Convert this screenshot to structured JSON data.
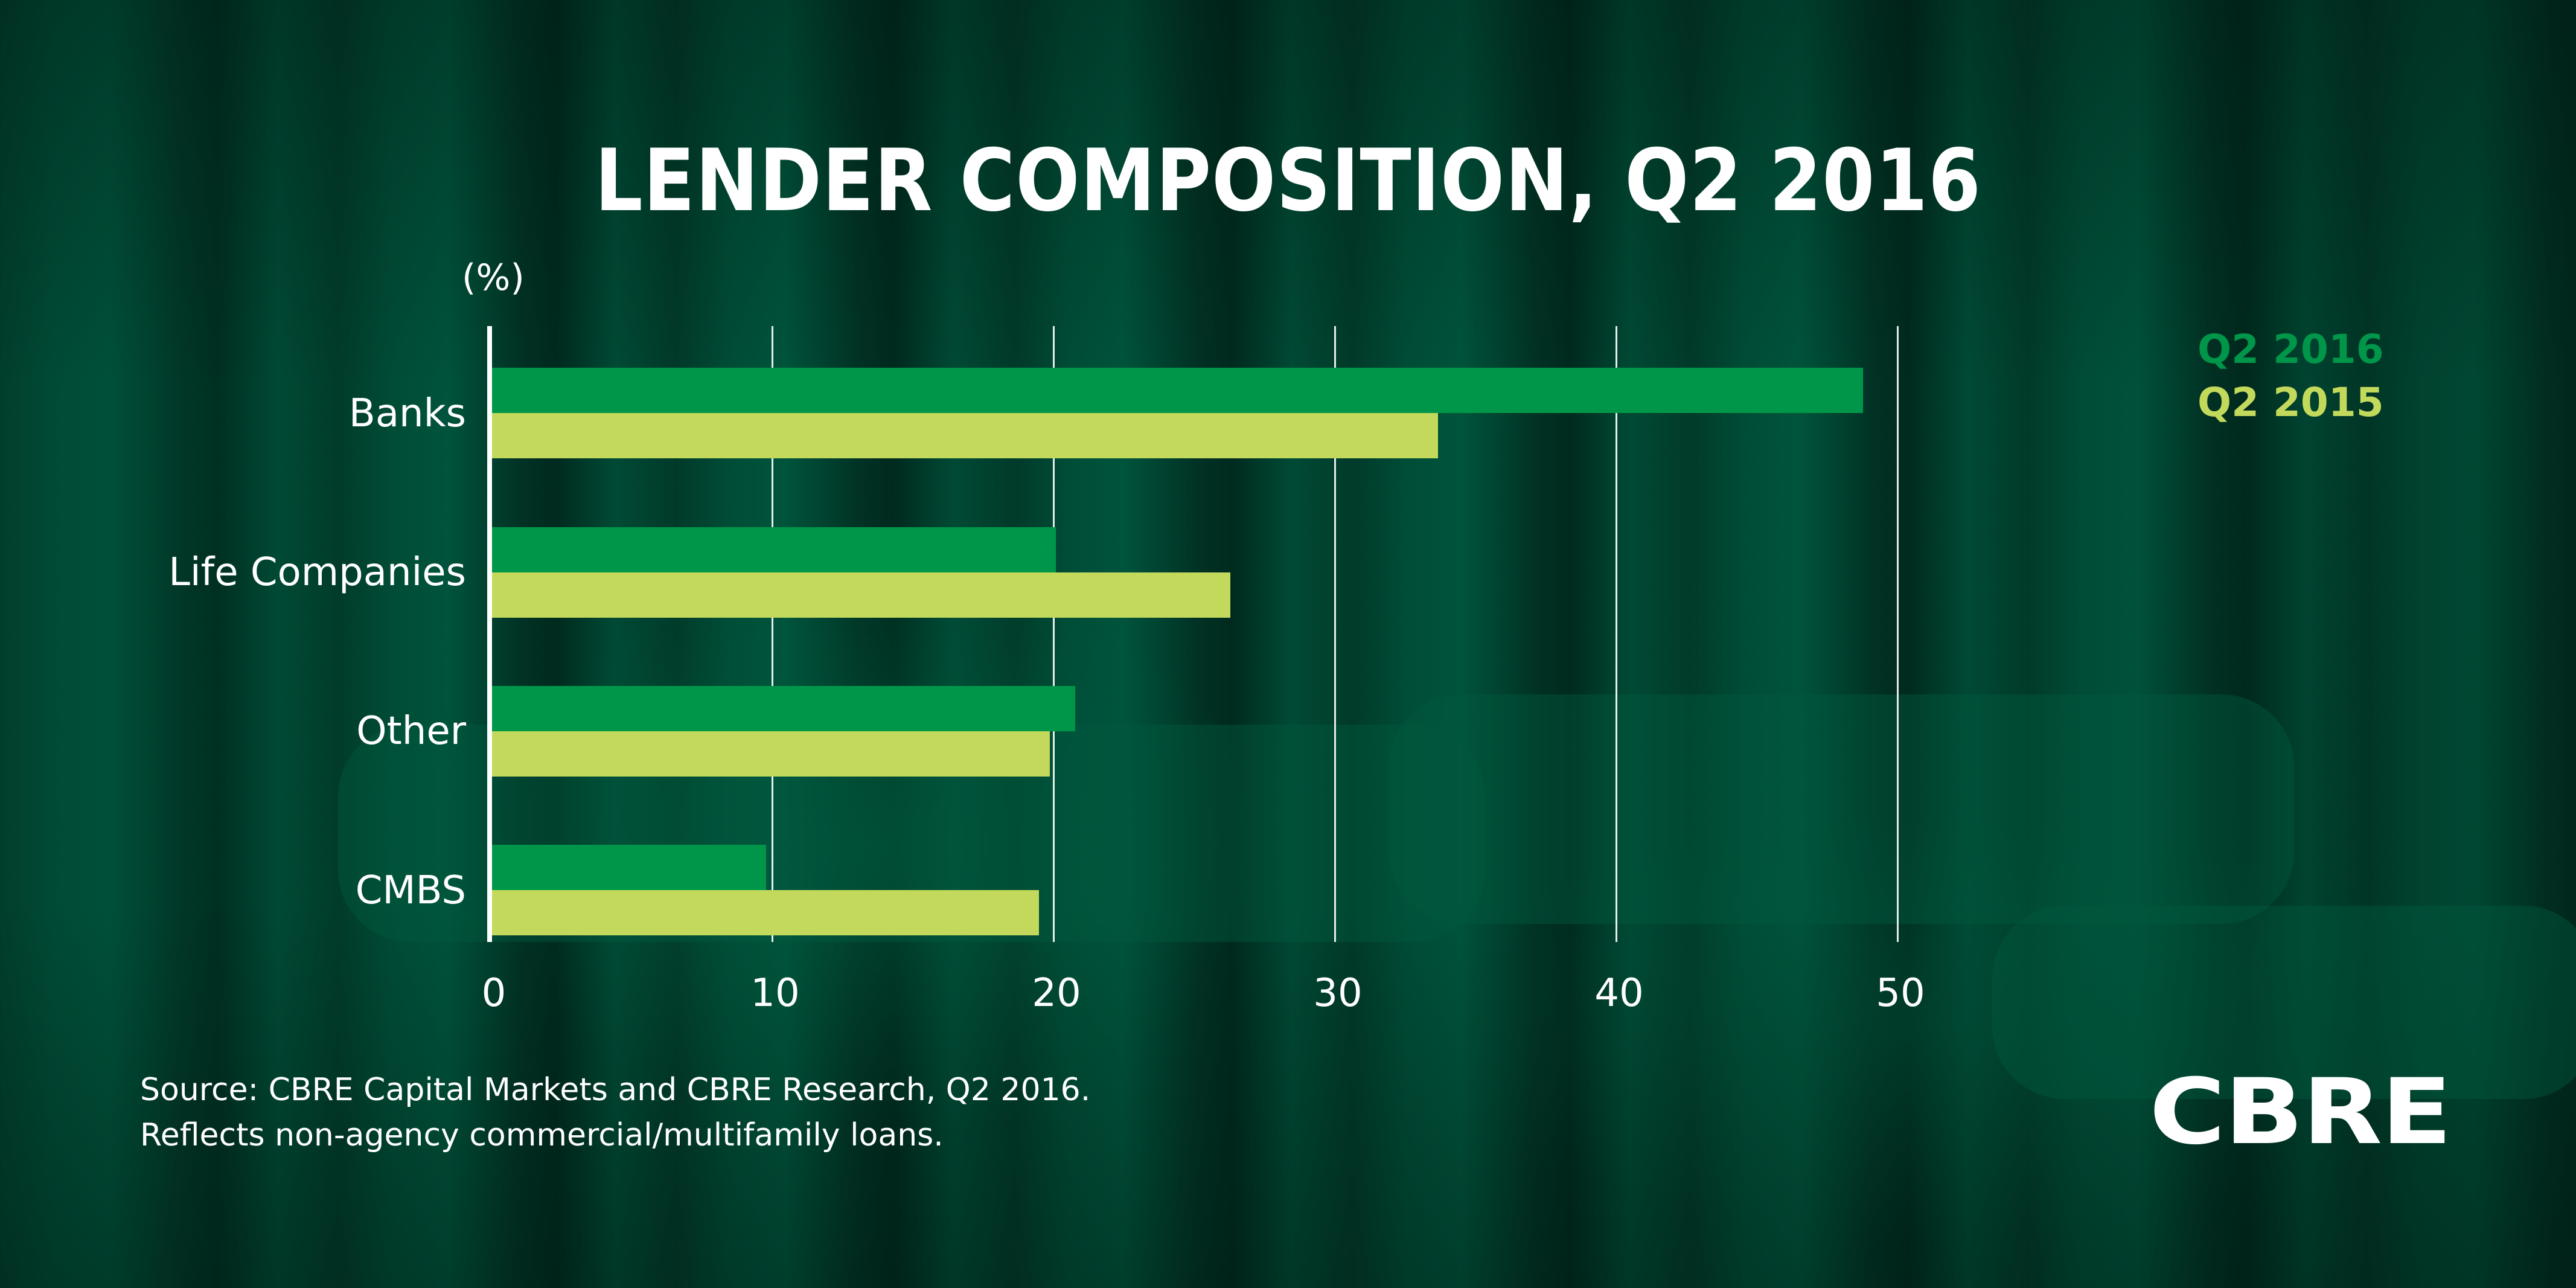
{
  "title": "LENDER COMPOSITION, Q2 2016",
  "unit_label": "(%)",
  "legend": {
    "items": [
      {
        "label": "Q2 2016",
        "color": "#009649"
      },
      {
        "label": "Q2 2015",
        "color": "#c2d95b"
      }
    ]
  },
  "x_ticks": [
    "0",
    "10",
    "20",
    "30",
    "40",
    "50"
  ],
  "categories": [
    "Banks",
    "Life Companies",
    "Other",
    "CMBS"
  ],
  "source": {
    "line1": "Source: CBRE Capital Markets and CBRE Research, Q2 2016.",
    "line2": "Reflects non-agency commercial/multifamily loans."
  },
  "logo": "CBRE",
  "colors": {
    "series_2016": "#009649",
    "series_2015": "#c2d95b",
    "background": "#00432f",
    "text": "#ffffff"
  },
  "chart_data": {
    "type": "bar",
    "orientation": "horizontal",
    "title": "LENDER COMPOSITION, Q2 2016",
    "xlabel": "",
    "ylabel": "",
    "unit": "(%)",
    "categories": [
      "Banks",
      "Life Companies",
      "Other",
      "CMBS"
    ],
    "series": [
      {
        "name": "Q2 2016",
        "color": "#009649",
        "values": [
          48.8,
          20.1,
          20.8,
          9.8
        ]
      },
      {
        "name": "Q2 2015",
        "color": "#c2d95b",
        "values": [
          33.7,
          26.3,
          19.9,
          19.5
        ]
      }
    ],
    "xlim": [
      0,
      50
    ],
    "x_ticks": [
      0,
      10,
      20,
      30,
      40,
      50
    ],
    "grid": {
      "vertical": true,
      "horizontal": false
    },
    "legend_position": "top-right",
    "annotations": [
      "Source: CBRE Capital Markets and CBRE Research, Q2 2016.",
      "Reflects non-agency commercial/multifamily loans."
    ]
  }
}
